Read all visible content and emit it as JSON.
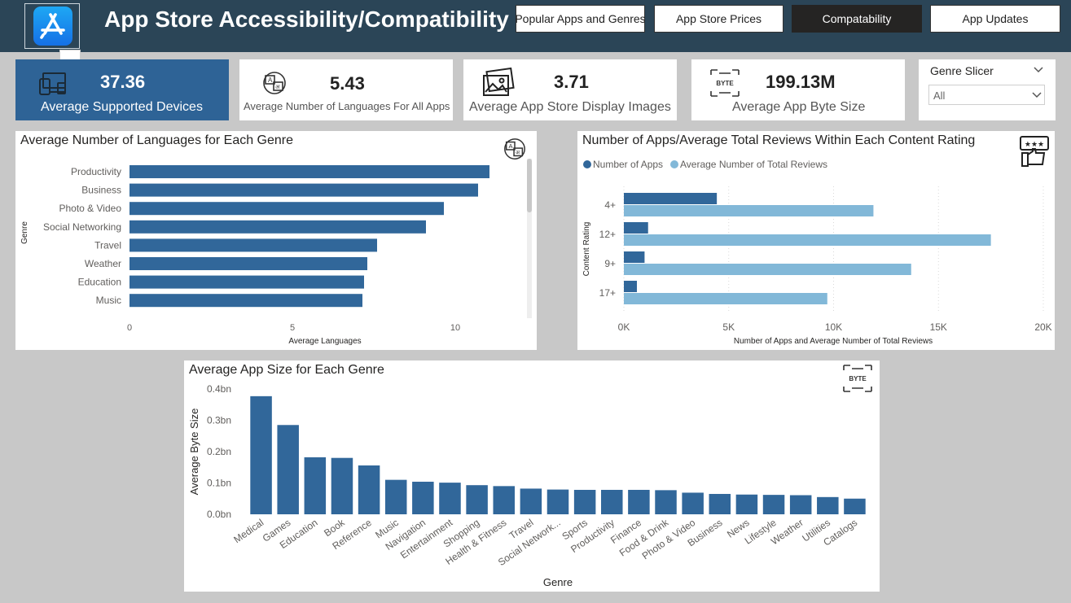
{
  "header": {
    "title": "App Store Accessibility/Compatibility",
    "nav": [
      {
        "label": "Popular Apps and Genres",
        "active": false
      },
      {
        "label": "App Store Prices",
        "active": false
      },
      {
        "label": "Compatability",
        "active": true
      },
      {
        "label": "App Updates",
        "active": false
      }
    ],
    "more_label": "..."
  },
  "kpis": {
    "devices": {
      "value": "37.36",
      "label": "Average Supported Devices"
    },
    "languages": {
      "value": "5.43",
      "label": "Average Number of Languages For All Apps"
    },
    "images": {
      "value": "3.71",
      "label": "Average App Store Display Images"
    },
    "bytes": {
      "value": "199.13M",
      "label": "Average App Byte Size",
      "icon_text": "BYTE"
    }
  },
  "slicer": {
    "title": "Genre Slicer",
    "selected": "All"
  },
  "colors": {
    "dark": "#31679a",
    "light": "#82b8d8",
    "accent": "#2e6396"
  },
  "chart_data": [
    {
      "type": "bar",
      "orientation": "horizontal",
      "title": "Average Number of Languages for Each Genre",
      "categories": [
        "Productivity",
        "Business",
        "Photo & Video",
        "Social Networking",
        "Travel",
        "Weather",
        "Education",
        "Music"
      ],
      "values": [
        11.05,
        10.7,
        9.65,
        9.1,
        7.6,
        7.3,
        7.2,
        7.15
      ],
      "xlabel": "Average Languages",
      "ylabel": "Genre",
      "xlim": [
        0,
        12
      ],
      "xticks": [
        "0",
        "5",
        "10"
      ]
    },
    {
      "type": "bar",
      "orientation": "horizontal",
      "title": "Number of Apps/Average Total Reviews Within Each Content Rating",
      "categories": [
        "4+",
        "12+",
        "9+",
        "17+"
      ],
      "series": [
        {
          "name": "Number of Apps",
          "values": [
            4433,
            1155,
            987,
            622
          ]
        },
        {
          "name": "Average Number of Total Reviews",
          "values": [
            11900,
            17500,
            13700,
            9700
          ]
        }
      ],
      "xlabel": "Number of Apps and Average Number of Total Reviews",
      "ylabel": "Content Rating",
      "xlim": [
        0,
        20000
      ],
      "xticks": [
        "0K",
        "5K",
        "10K",
        "15K",
        "20K"
      ]
    },
    {
      "type": "bar",
      "title": "Average App Size for Each Genre",
      "categories": [
        "Medical",
        "Games",
        "Education",
        "Book",
        "Reference",
        "Music",
        "Navigation",
        "Entertainment",
        "Shopping",
        "Health & Fitness",
        "Travel",
        "Social Network...",
        "Sports",
        "Productivity",
        "Finance",
        "Food & Drink",
        "Photo & Video",
        "Business",
        "News",
        "Lifestyle",
        "Weather",
        "Utilities",
        "Catalogs"
      ],
      "values": [
        0.377,
        0.285,
        0.182,
        0.18,
        0.156,
        0.11,
        0.104,
        0.101,
        0.093,
        0.09,
        0.082,
        0.079,
        0.078,
        0.078,
        0.078,
        0.077,
        0.069,
        0.065,
        0.063,
        0.062,
        0.061,
        0.055,
        0.05
      ],
      "xlabel": "Genre",
      "ylabel": "Average Byte Size",
      "ylim": [
        0,
        0.4
      ],
      "yticks": [
        "0.0bn",
        "0.1bn",
        "0.2bn",
        "0.3bn",
        "0.4bn"
      ],
      "icon_text": "BYTE"
    }
  ]
}
